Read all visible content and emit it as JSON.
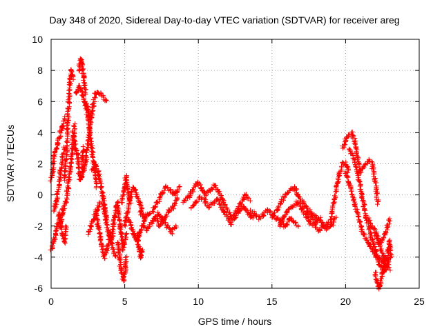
{
  "chart_data": {
    "type": "scatter",
    "title": "Day 348 of 2020, Sidereal Day-to-day VTEC variation (SDTVAR) for receiver areg",
    "xlabel": "GPS time / hours",
    "ylabel": "SDTVAR / TECUs",
    "xlim": [
      0,
      25
    ],
    "ylim": [
      -6,
      10
    ],
    "xticks": [
      0,
      5,
      10,
      15,
      20,
      25
    ],
    "yticks": [
      -6,
      -4,
      -2,
      0,
      2,
      4,
      6,
      8,
      10
    ],
    "grid": true,
    "marker": "+",
    "color": "#ff0000",
    "series": [
      {
        "name": "SDTVAR",
        "bands": [
          {
            "x": [
              0.0,
              0.1,
              0.2,
              0.35,
              0.5,
              0.65,
              0.8,
              0.95
            ],
            "y": [
              1.0,
              1.5,
              2.5,
              3.0,
              3.5,
              4.0,
              4.5,
              5.0
            ]
          },
          {
            "x": [
              0.0,
              0.15,
              0.3,
              0.45,
              0.6,
              0.75,
              0.9,
              1.0
            ],
            "y": [
              -3.5,
              -3.0,
              -2.5,
              -1.8,
              -1.2,
              -2.5,
              -3.0,
              -2.0
            ]
          },
          {
            "x": [
              0.2,
              0.35,
              0.5,
              0.65,
              0.8,
              0.9
            ],
            "y": [
              -1.0,
              -0.5,
              0.5,
              1.5,
              2.5,
              3.0
            ]
          },
          {
            "x": [
              0.6,
              0.8,
              0.95
            ],
            "y": [
              -2.0,
              -1.0,
              -0.5
            ]
          },
          {
            "x": [
              0.9,
              1.0,
              1.1,
              1.2,
              1.3,
              1.4,
              1.5
            ],
            "y": [
              1.0,
              2.0,
              4.0,
              6.0,
              7.5,
              8.0,
              7.5
            ]
          },
          {
            "x": [
              1.0,
              1.15,
              1.3,
              1.45,
              1.6
            ],
            "y": [
              -0.5,
              0.5,
              1.5,
              3.0,
              4.5
            ]
          },
          {
            "x": [
              1.5,
              1.65,
              1.8,
              1.95,
              2.1,
              2.2
            ],
            "y": [
              4.0,
              3.0,
              2.5,
              1.0,
              1.5,
              3.0
            ]
          },
          {
            "x": [
              1.9,
              2.0,
              2.1,
              2.2,
              2.35
            ],
            "y": [
              8.0,
              8.8,
              8.5,
              7.5,
              6.5
            ]
          },
          {
            "x": [
              1.7,
              1.9,
              2.1,
              2.3,
              2.5,
              2.7
            ],
            "y": [
              6.5,
              7.0,
              6.5,
              6.0,
              5.5,
              5.0
            ]
          },
          {
            "x": [
              2.0,
              2.2,
              2.4,
              2.6,
              2.8,
              3.0,
              3.2,
              3.4,
              3.6,
              3.8
            ],
            "y": [
              1.0,
              1.5,
              2.5,
              4.0,
              5.5,
              6.5,
              6.5,
              6.5,
              6.2,
              6.0
            ]
          },
          {
            "x": [
              2.3,
              2.5,
              2.7,
              2.9,
              3.1
            ],
            "y": [
              6.0,
              5.0,
              3.5,
              2.0,
              0.5
            ]
          },
          {
            "x": [
              2.5,
              2.7,
              2.9,
              3.1,
              3.3
            ],
            "y": [
              -2.5,
              -2.0,
              -1.5,
              -1.0,
              -0.5
            ]
          },
          {
            "x": [
              2.8,
              3.0,
              3.2,
              3.4,
              3.6,
              3.8
            ],
            "y": [
              1.5,
              2.0,
              1.5,
              0.5,
              -0.5,
              -1.5
            ]
          },
          {
            "x": [
              3.0,
              3.2,
              3.4,
              3.6,
              3.8,
              4.0,
              4.2,
              4.4
            ],
            "y": [
              -1.0,
              -2.0,
              -3.0,
              -4.0,
              -3.5,
              -2.5,
              -3.5,
              -4.0
            ]
          },
          {
            "x": [
              3.5,
              3.7,
              3.9,
              4.1,
              4.3,
              4.5,
              4.7,
              4.9,
              5.1
            ],
            "y": [
              -0.5,
              -1.5,
              -2.5,
              -3.0,
              -1.5,
              -0.5,
              -2.0,
              -3.5,
              -2.5
            ]
          },
          {
            "x": [
              4.5,
              4.6,
              4.7,
              4.8,
              4.9,
              5.0,
              5.1
            ],
            "y": [
              -3.0,
              -3.5,
              -4.5,
              -5.0,
              -5.5,
              -5.0,
              -4.0
            ]
          },
          {
            "x": [
              4.8,
              5.0,
              5.1,
              5.2,
              5.4
            ],
            "y": [
              -0.5,
              0.5,
              1.2,
              0.5,
              -0.5
            ]
          },
          {
            "x": [
              5.0,
              5.2,
              5.4,
              5.6,
              5.8,
              6.0,
              6.2
            ],
            "y": [
              -2.0,
              -1.0,
              0.0,
              0.5,
              0.0,
              -0.5,
              -1.0
            ]
          },
          {
            "x": [
              5.2,
              5.4,
              5.6,
              5.8,
              6.0,
              6.2,
              6.4
            ],
            "y": [
              -1.5,
              -2.0,
              -2.5,
              -3.0,
              -2.5,
              -2.0,
              -1.5
            ]
          },
          {
            "x": [
              5.8,
              5.9,
              6.0,
              6.1,
              6.2
            ],
            "y": [
              -2.5,
              -3.0,
              -3.5,
              -4.0,
              -3.5
            ]
          },
          {
            "x": [
              6.0,
              6.3,
              6.6,
              6.9,
              7.2,
              7.5,
              7.8,
              8.1,
              8.4,
              8.7
            ],
            "y": [
              -1.0,
              -1.5,
              -1.2,
              -1.0,
              -0.5,
              0.0,
              0.5,
              0.3,
              0.0,
              0.5
            ]
          },
          {
            "x": [
              6.2,
              6.5,
              6.8,
              7.1,
              7.4,
              7.7,
              8.0,
              8.3,
              8.6
            ],
            "y": [
              -2.0,
              -2.2,
              -1.8,
              -1.5,
              -2.0,
              -1.5,
              -1.0,
              -0.8,
              -0.2
            ]
          },
          {
            "x": [
              7.0,
              7.3,
              7.6,
              7.9,
              8.2,
              8.5
            ],
            "y": [
              -1.5,
              -1.2,
              -1.6,
              -2.0,
              -2.4,
              -2.0
            ]
          },
          {
            "x": [
              9.0,
              9.3,
              9.6,
              9.9,
              10.2,
              10.5,
              10.8,
              11.1,
              11.4,
              11.7,
              12.0,
              12.3,
              12.6,
              12.9,
              13.2,
              13.5
            ],
            "y": [
              -0.5,
              -0.2,
              0.3,
              0.8,
              0.5,
              0.0,
              0.3,
              0.6,
              0.2,
              -0.5,
              -1.0,
              -1.5,
              -1.0,
              -0.5,
              0.0,
              -0.3
            ]
          },
          {
            "x": [
              9.5,
              9.8,
              10.1,
              10.4,
              10.7,
              11.0,
              11.3,
              11.6,
              11.9,
              12.2,
              12.5,
              12.8,
              13.1,
              13.4,
              13.7
            ],
            "y": [
              -0.8,
              -0.5,
              -0.2,
              -0.3,
              -0.8,
              -0.5,
              -0.3,
              -0.8,
              -1.3,
              -1.8,
              -1.5,
              -1.0,
              -0.8,
              -1.2,
              -1.5
            ]
          },
          {
            "x": [
              13.5,
              13.8,
              14.1,
              14.4,
              14.7,
              15.0,
              15.3,
              15.6,
              15.9,
              16.2,
              16.5,
              16.8
            ],
            "y": [
              -1.0,
              -1.2,
              -1.5,
              -1.3,
              -1.0,
              -1.2,
              -1.5,
              -1.8,
              -2.0,
              -1.5,
              -1.8,
              -2.0
            ]
          },
          {
            "x": [
              15.0,
              15.3,
              15.6,
              15.9,
              16.2,
              16.5,
              16.8,
              17.1,
              17.4,
              17.7,
              18.0,
              18.3
            ],
            "y": [
              -1.5,
              -1.0,
              -0.5,
              0.0,
              0.3,
              0.5,
              0.0,
              -0.5,
              -1.0,
              -1.5,
              -1.8,
              -1.5
            ]
          },
          {
            "x": [
              15.5,
              15.8,
              16.1,
              16.4,
              16.7,
              17.0,
              17.3,
              17.6,
              17.9,
              18.2,
              18.5,
              18.8,
              19.1
            ],
            "y": [
              -2.0,
              -1.5,
              -1.0,
              -0.7,
              -0.5,
              -0.8,
              -1.3,
              -1.8,
              -2.0,
              -2.3,
              -2.0,
              -1.8,
              -1.5
            ]
          },
          {
            "x": [
              17.5,
              17.8,
              18.1,
              18.4,
              18.7,
              19.0,
              19.3
            ],
            "y": [
              -1.0,
              -1.3,
              -1.5,
              -1.8,
              -2.2,
              -2.0,
              -1.5
            ]
          },
          {
            "x": [
              19.0,
              19.2,
              19.4,
              19.6,
              19.8,
              20.0,
              20.2
            ],
            "y": [
              -1.5,
              -0.5,
              0.5,
              1.5,
              2.0,
              2.0,
              1.5
            ]
          },
          {
            "x": [
              19.8,
              20.0,
              20.2,
              20.4,
              20.6,
              20.8,
              21.0
            ],
            "y": [
              3.0,
              3.5,
              3.8,
              4.0,
              3.5,
              2.5,
              1.5
            ]
          },
          {
            "x": [
              20.0,
              20.3,
              20.6,
              20.9,
              21.2,
              21.5,
              21.8,
              22.1,
              22.4,
              22.7,
              23.0
            ],
            "y": [
              1.5,
              0.5,
              -0.5,
              -1.5,
              -2.5,
              -3.0,
              -3.5,
              -4.0,
              -4.2,
              -4.5,
              -4.8
            ]
          },
          {
            "x": [
              20.2,
              20.5,
              20.8,
              21.1,
              21.4,
              21.7,
              22.0,
              22.3,
              22.6,
              22.9
            ],
            "y": [
              3.0,
              2.5,
              1.5,
              0.0,
              -1.5,
              -2.5,
              -3.5,
              -4.5,
              -5.0,
              -4.5
            ]
          },
          {
            "x": [
              21.0,
              21.2,
              21.4,
              21.6,
              21.8,
              22.0,
              22.2
            ],
            "y": [
              1.5,
              1.8,
              2.0,
              2.2,
              2.0,
              1.0,
              -0.5
            ]
          },
          {
            "x": [
              21.5,
              21.8,
              22.1,
              22.4,
              22.7,
              23.0
            ],
            "y": [
              -1.5,
              -2.0,
              -2.5,
              -3.0,
              -2.5,
              -1.5
            ]
          },
          {
            "x": [
              22.0,
              22.2,
              22.4,
              22.6,
              22.8,
              23.0
            ],
            "y": [
              -2.5,
              -3.0,
              -3.5,
              -4.0,
              -4.5,
              -4.0
            ]
          },
          {
            "x": [
              22.0,
              22.1,
              22.2,
              22.3,
              22.4,
              22.5,
              22.7
            ],
            "y": [
              -5.0,
              -5.5,
              -5.8,
              -6.0,
              -5.5,
              -5.0,
              -4.0
            ]
          },
          {
            "x": [
              22.8,
              22.9,
              23.0,
              23.1
            ],
            "y": [
              -4.5,
              -3.5,
              -3.0,
              -4.0
            ]
          }
        ]
      }
    ]
  }
}
